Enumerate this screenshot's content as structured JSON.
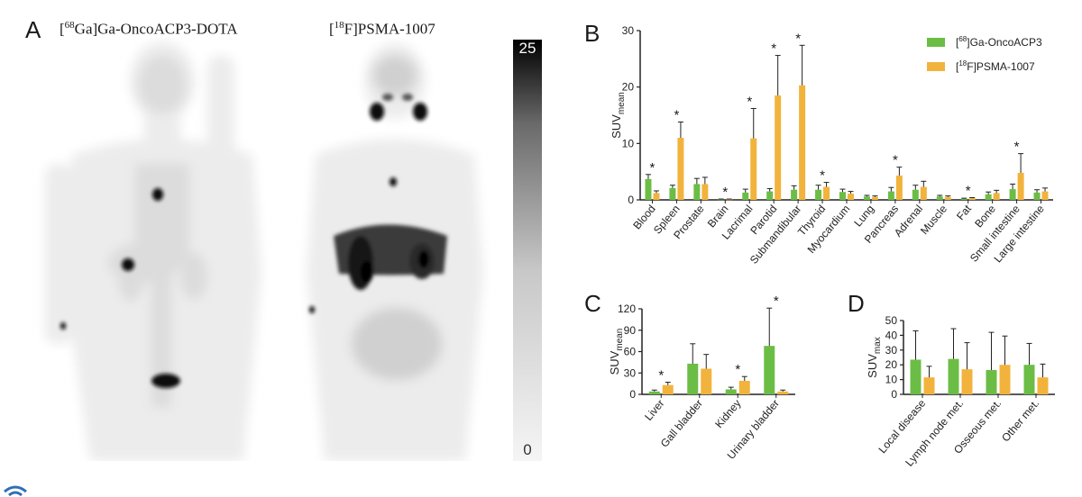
{
  "panelA": {
    "letter": "A",
    "left_title": {
      "isotope": "68",
      "text": "Ga]Ga-OncoACP3-DOTA"
    },
    "right_title": {
      "isotope": "18",
      "text": "F]PSMA-1007"
    },
    "colorbar": {
      "max": "25",
      "min": "0"
    }
  },
  "colors": {
    "green": "#6cbd45",
    "orange": "#f2b33d",
    "error": "#222222"
  },
  "chart_data": [
    {
      "panel": "B",
      "type": "bar",
      "ylabel": "SUV",
      "ylabel_sub": "mean",
      "ylim": [
        0,
        30
      ],
      "yticks": [
        0,
        10,
        20,
        30
      ],
      "categories": [
        "Blood",
        "Spleen",
        "Prostate",
        "Brain",
        "Lacrimal",
        "Parotid",
        "Submandibular",
        "Thyroid",
        "Myocardium",
        "Lung",
        "Pancreas",
        "Adrenal",
        "Muscle",
        "Fat",
        "Bone",
        "Small intestine",
        "Large intestine"
      ],
      "series": [
        {
          "name": "Ga-OncoACP3",
          "isotope": "68",
          "color": "#6cbd45",
          "values": [
            3.7,
            2.1,
            2.8,
            0.1,
            1.3,
            1.5,
            1.8,
            1.8,
            1.4,
            0.6,
            1.5,
            1.8,
            0.6,
            0.2,
            1.0,
            1.9,
            1.3
          ],
          "errors": [
            0.8,
            0.5,
            1.0,
            0.05,
            0.6,
            0.5,
            0.7,
            0.8,
            0.5,
            0.2,
            0.7,
            0.8,
            0.2,
            0.1,
            0.4,
            0.9,
            0.5
          ]
        },
        {
          "name": "F]PSMA-1007",
          "isotope": "18",
          "color": "#f2b33d",
          "values": [
            1.2,
            11.0,
            2.8,
            0.1,
            10.9,
            18.5,
            20.3,
            2.3,
            1.1,
            0.5,
            4.3,
            2.3,
            0.5,
            0.3,
            1.2,
            4.8,
            1.5
          ],
          "errors": [
            0.4,
            2.8,
            1.2,
            0.05,
            5.3,
            7.1,
            7.1,
            0.8,
            0.4,
            0.2,
            1.5,
            1.0,
            0.2,
            0.1,
            0.5,
            3.4,
            0.6
          ]
        }
      ],
      "significant": [
        0,
        1,
        3,
        4,
        5,
        6,
        7,
        10,
        13,
        15
      ],
      "star": "*"
    },
    {
      "panel": "C",
      "type": "bar",
      "ylabel": "SUV",
      "ylabel_sub": "mean",
      "ylim": [
        0,
        120
      ],
      "yticks": [
        0,
        30,
        60,
        90,
        120
      ],
      "categories": [
        "Liver",
        "Gall bladder",
        "Kidney",
        "Urinary bladder"
      ],
      "series": [
        {
          "name": "Ga-OncoACP3",
          "color": "#6cbd45",
          "values": [
            4,
            43,
            7,
            68
          ],
          "errors": [
            2,
            28,
            3,
            53
          ]
        },
        {
          "name": "F]PSMA-1007",
          "color": "#f2b33d",
          "values": [
            13,
            36,
            19,
            4
          ],
          "errors": [
            4,
            20,
            6,
            2
          ]
        }
      ],
      "significant": [
        0,
        2,
        3
      ],
      "star": "*"
    },
    {
      "panel": "D",
      "type": "bar",
      "ylabel": "SUV",
      "ylabel_sub": "max",
      "ylim": [
        0,
        50
      ],
      "yticks": [
        0,
        10,
        20,
        30,
        40,
        50
      ],
      "categories": [
        "Local disease",
        "Lymph node met.",
        "Osseous met.",
        "Other met."
      ],
      "series": [
        {
          "name": "Ga-OncoACP3",
          "color": "#6cbd45",
          "values": [
            23.5,
            24,
            16.5,
            20
          ],
          "errors": [
            19.5,
            20.5,
            25.5,
            14.5
          ]
        },
        {
          "name": "F]PSMA-1007",
          "color": "#f2b33d",
          "values": [
            11.5,
            17,
            20,
            11.5
          ],
          "errors": [
            7.5,
            18,
            19.5,
            9
          ]
        }
      ],
      "significant": []
    }
  ]
}
